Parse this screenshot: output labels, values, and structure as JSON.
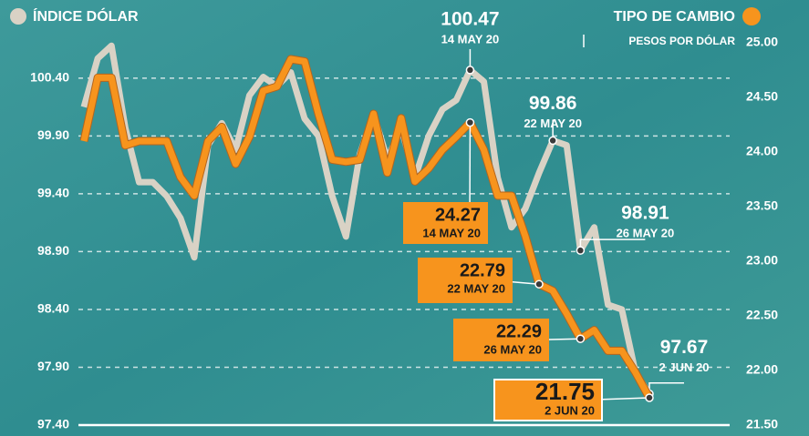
{
  "chart_data": {
    "type": "line",
    "categories": [
      null,
      null,
      null,
      null,
      null,
      null,
      null,
      null,
      null,
      null,
      null,
      null,
      null,
      null,
      null,
      null,
      null,
      null,
      null,
      null,
      null,
      null,
      null,
      null,
      null,
      null,
      null,
      null,
      null,
      null,
      null,
      null,
      null,
      null,
      null,
      null,
      null,
      null,
      null,
      null,
      null,
      null
    ],
    "ylim": [
      97.4,
      100.8
    ],
    "yticks": [
      {
        "value": 97.4,
        "label": "97.40"
      },
      {
        "value": 97.9,
        "label": "97.90"
      },
      {
        "value": 98.4,
        "label": "98.40"
      },
      {
        "value": 98.9,
        "label": "98.90"
      },
      {
        "value": 99.4,
        "label": "99.40"
      },
      {
        "value": 99.9,
        "label": "99.90"
      },
      {
        "value": 100.4,
        "label": "100.40"
      }
    ],
    "y2lim": [
      21.5,
      25.1
    ],
    "y2ticks": [
      {
        "value": 21.5,
        "label": "21.50"
      },
      {
        "value": 22,
        "label": "22.00"
      },
      {
        "value": 22.5,
        "label": "22.50"
      },
      {
        "value": 23,
        "label": "23.00"
      },
      {
        "value": 23.5,
        "label": "23.50"
      },
      {
        "value": 24,
        "label": "24.00"
      },
      {
        "value": 24.5,
        "label": "24.50"
      },
      {
        "value": 25,
        "label": "25.00"
      }
    ],
    "y2label": "PESOS POR DÓLAR",
    "grid": true,
    "series": [
      {
        "name": "ÍNDICE DÓLAR",
        "color": "#d9d2c5",
        "values": [
          100.15,
          100.57,
          100.68,
          99.97,
          99.5,
          99.5,
          99.38,
          99.19,
          98.85,
          99.82,
          100.01,
          99.78,
          100.25,
          100.41,
          100.33,
          100.45,
          100.05,
          99.9,
          99.38,
          99.03,
          99.74,
          100.09,
          99.7,
          99.97,
          99.54,
          99.9,
          100.13,
          100.21,
          100.47,
          100.37,
          99.54,
          99.11,
          99.27,
          99.58,
          99.86,
          99.82,
          98.91,
          99.11,
          98.44,
          98.4,
          97.85,
          97.67
        ],
        "point_labels": [
          null,
          null,
          null,
          null,
          null,
          null,
          null,
          null,
          null,
          null,
          null,
          null,
          null,
          null,
          null,
          null,
          null,
          null,
          null,
          null,
          null,
          null,
          null,
          null,
          null,
          null,
          null,
          null,
          "14 MAY 20",
          null,
          null,
          null,
          null,
          null,
          "22 MAY 20",
          null,
          "26 MAY 20",
          null,
          null,
          null,
          null,
          "2 JUN 20"
        ]
      },
      {
        "name": "TIPO DE CAMBIO",
        "color": "#f7941d",
        "axis": "y2",
        "values": [
          24.1,
          24.68,
          24.68,
          24.06,
          24.1,
          24.1,
          24.1,
          23.77,
          23.6,
          24.1,
          24.23,
          23.89,
          24.14,
          24.56,
          24.6,
          24.85,
          24.83,
          24.35,
          23.93,
          23.91,
          23.93,
          24.35,
          23.81,
          24.31,
          23.73,
          23.85,
          24.02,
          24.14,
          24.27,
          24.02,
          23.6,
          23.6,
          23.23,
          22.79,
          22.73,
          22.52,
          22.29,
          22.37,
          22.18,
          22.18,
          21.98,
          21.75
        ],
        "point_labels": [
          null,
          null,
          null,
          null,
          null,
          null,
          null,
          null,
          null,
          null,
          null,
          null,
          null,
          null,
          null,
          null,
          null,
          null,
          null,
          null,
          null,
          null,
          null,
          null,
          null,
          null,
          null,
          null,
          "14 MAY 20",
          null,
          null,
          null,
          null,
          "22 MAY 20",
          null,
          null,
          "26 MAY 20",
          null,
          null,
          null,
          null,
          "2 JUN 20"
        ]
      }
    ]
  }
}
